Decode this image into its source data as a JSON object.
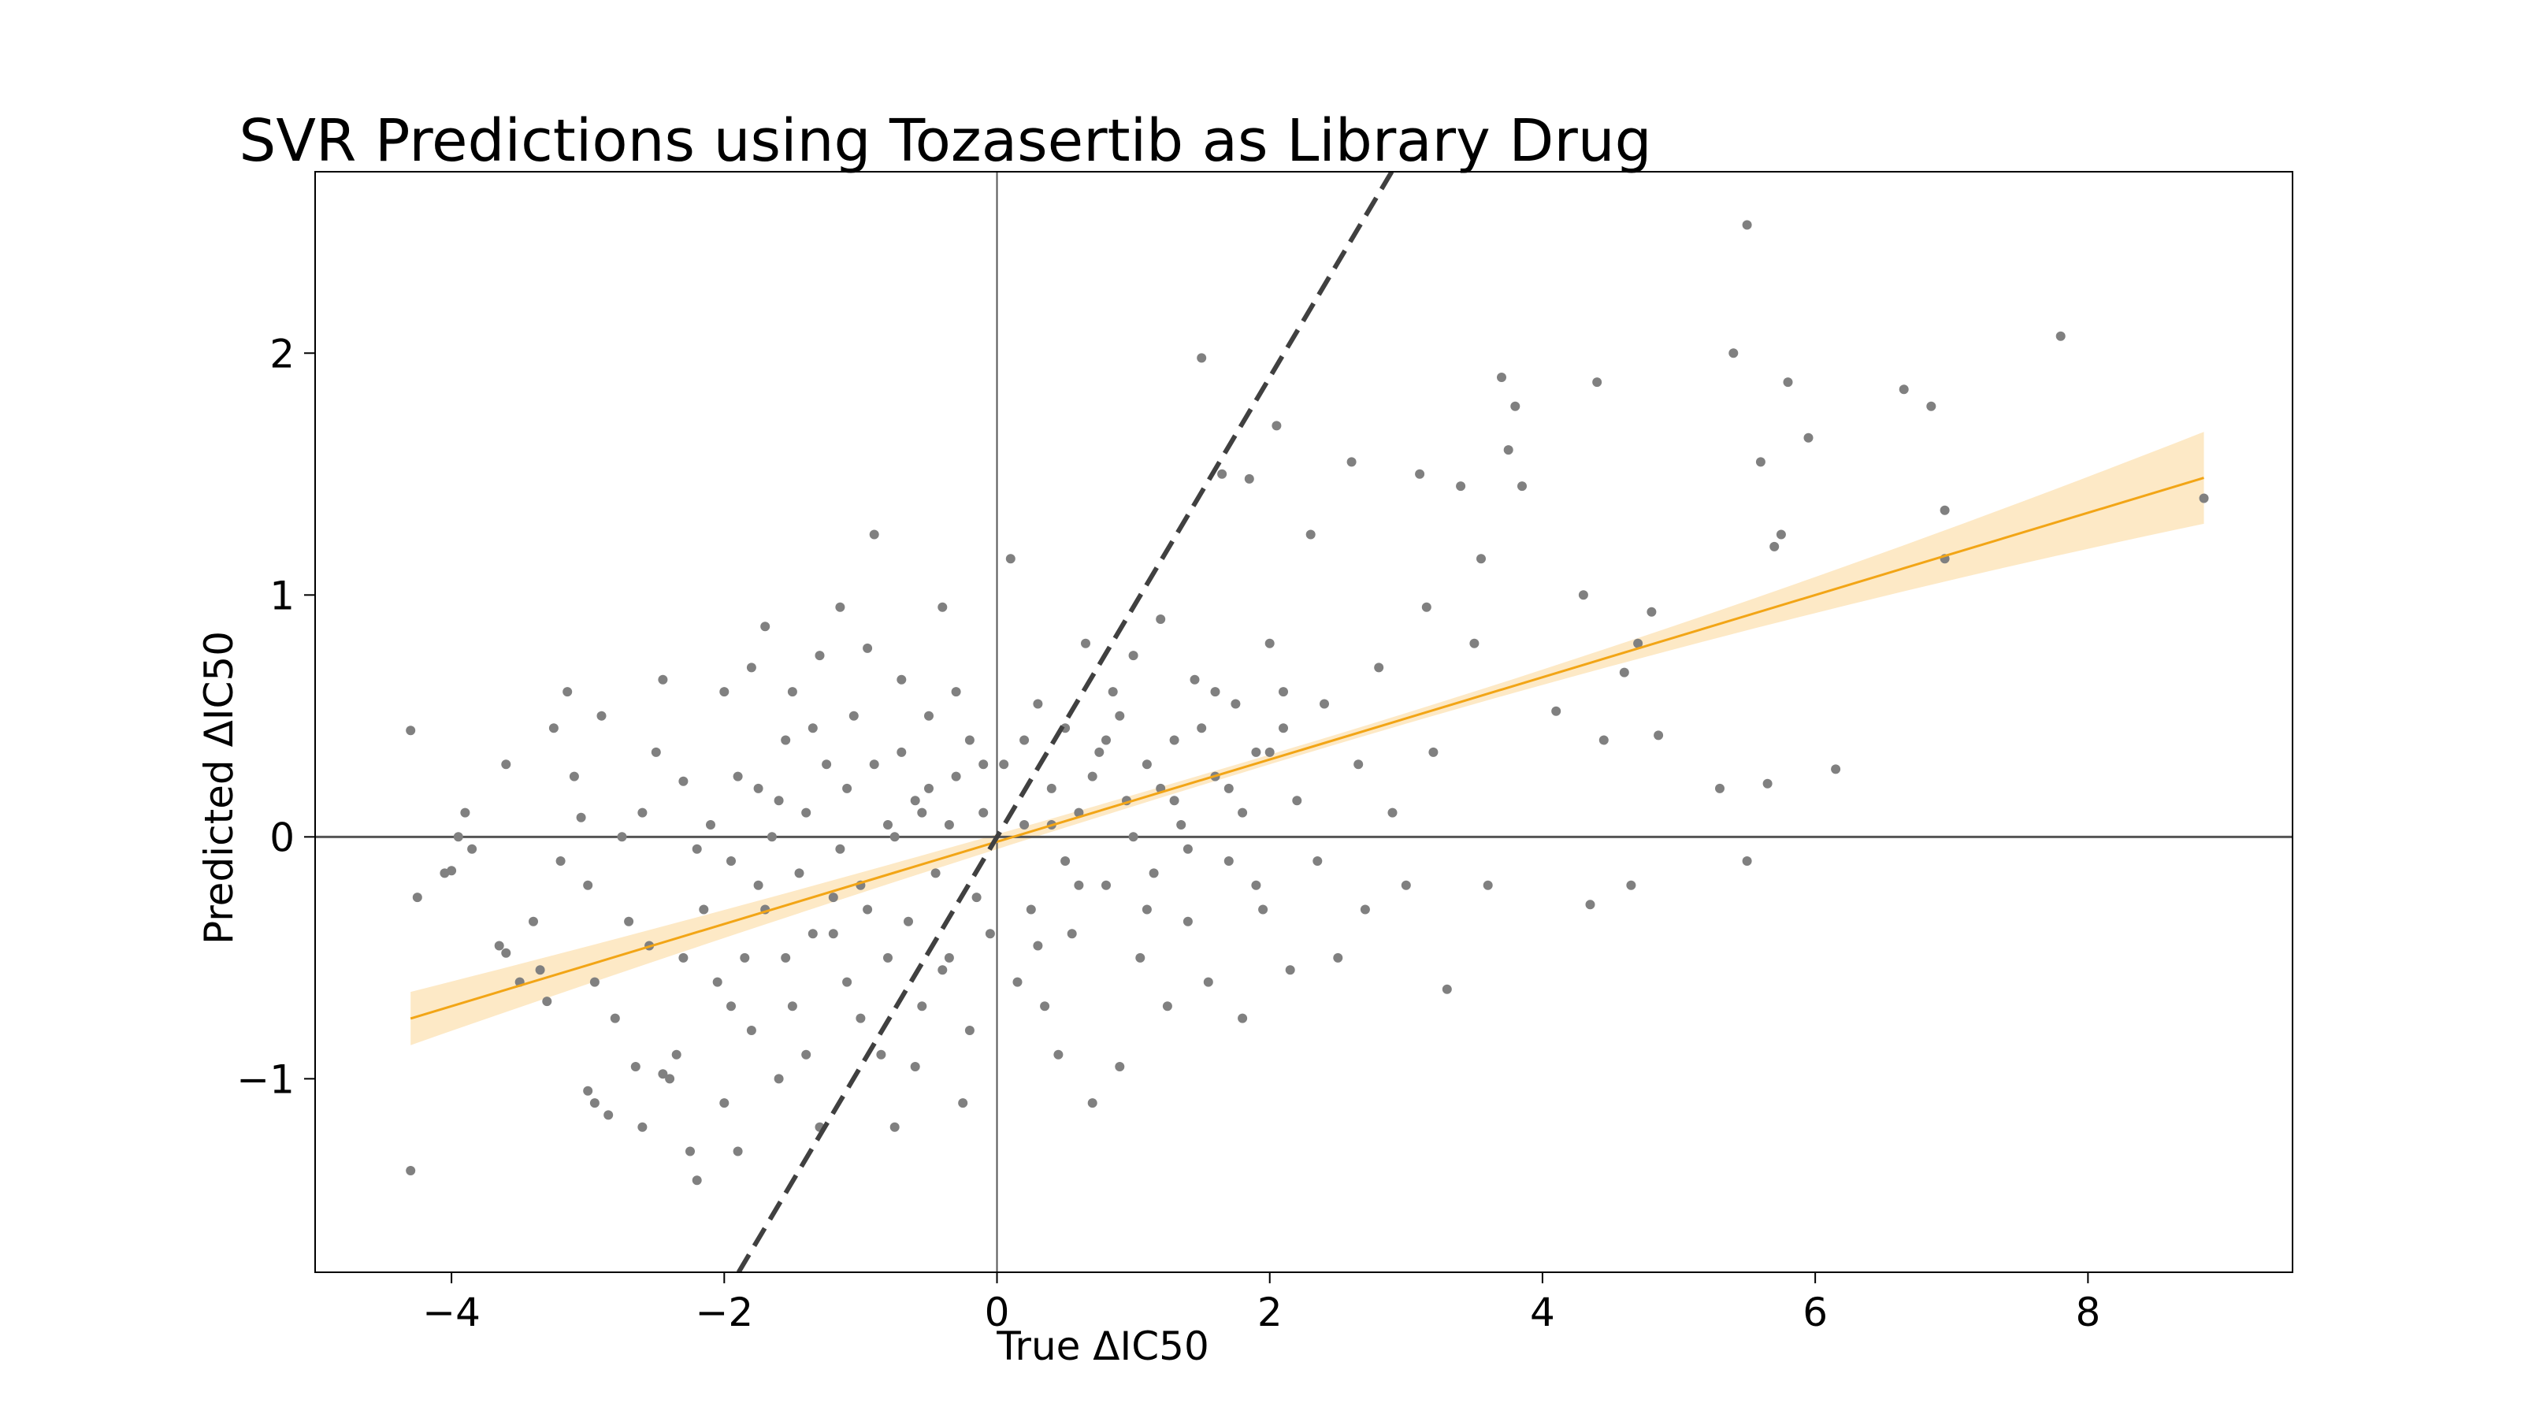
{
  "chart_data": {
    "type": "scatter",
    "title": "SVR Predictions using Tozasertib as Library Drug",
    "xlabel": "True ΔIC50",
    "ylabel": "Predicted ΔIC50",
    "xlim": [
      -5.0,
      9.5
    ],
    "ylim": [
      -1.8,
      2.75
    ],
    "xticks": [
      {
        "value": -4,
        "label": "−4"
      },
      {
        "value": -2,
        "label": "−2"
      },
      {
        "value": 0,
        "label": "0"
      },
      {
        "value": 2,
        "label": "2"
      },
      {
        "value": 4,
        "label": "4"
      },
      {
        "value": 6,
        "label": "6"
      },
      {
        "value": 8,
        "label": "8"
      }
    ],
    "yticks": [
      {
        "value": -1,
        "label": "−1"
      },
      {
        "value": 0,
        "label": "0"
      },
      {
        "value": 1,
        "label": "1"
      },
      {
        "value": 2,
        "label": "2"
      }
    ],
    "grid": false,
    "reference_lines": [
      {
        "kind": "vertical",
        "x": 0
      },
      {
        "kind": "horizontal",
        "y": 0
      },
      {
        "kind": "dashed",
        "slope": 0.95,
        "intercept": 0
      }
    ],
    "regression": {
      "x_range": [
        -4.3,
        8.85
      ],
      "slope": 0.17,
      "intercept": -0.02,
      "ci_halfwidth_at_ends": [
        0.11,
        0.19
      ],
      "ci_halfwidth_at_center": 0.02
    },
    "colors": {
      "points": "#808080",
      "regression_line": "#f2a516",
      "confidence_band": "#fde9c6",
      "dashed_line": "#404040",
      "zero_lines": "#555555"
    },
    "points": [
      [
        -4.3,
        0.44
      ],
      [
        -4.3,
        -1.38
      ],
      [
        -4.25,
        -0.25
      ],
      [
        -4.05,
        -0.15
      ],
      [
        -4.0,
        -0.14
      ],
      [
        -3.95,
        0.0
      ],
      [
        -3.9,
        0.1
      ],
      [
        -3.85,
        -0.05
      ],
      [
        -3.6,
        0.3
      ],
      [
        -3.65,
        -0.45
      ],
      [
        -3.6,
        -0.48
      ],
      [
        -3.5,
        -0.6
      ],
      [
        -3.35,
        -0.55
      ],
      [
        -3.3,
        -0.68
      ],
      [
        -3.25,
        0.45
      ],
      [
        -3.15,
        0.6
      ],
      [
        -3.1,
        0.25
      ],
      [
        -3.05,
        0.08
      ],
      [
        -3.0,
        -0.2
      ],
      [
        -3.0,
        -1.05
      ],
      [
        -2.95,
        -1.1
      ],
      [
        -2.95,
        -0.6
      ],
      [
        -2.85,
        -1.15
      ],
      [
        -2.8,
        -0.75
      ],
      [
        -2.7,
        -0.35
      ],
      [
        -2.65,
        -0.95
      ],
      [
        -2.6,
        -1.2
      ],
      [
        -2.55,
        -0.45
      ],
      [
        -2.45,
        -0.98
      ],
      [
        -2.4,
        -1.0
      ],
      [
        -2.35,
        -0.9
      ],
      [
        -2.3,
        0.23
      ],
      [
        -2.25,
        -1.3
      ],
      [
        -2.2,
        -1.42
      ],
      [
        -2.15,
        -0.3
      ],
      [
        -2.1,
        0.05
      ],
      [
        -2.05,
        -0.6
      ],
      [
        -2.0,
        -1.1
      ],
      [
        -1.95,
        -0.1
      ],
      [
        -1.9,
        0.25
      ],
      [
        -1.85,
        -0.5
      ],
      [
        -1.8,
        -0.8
      ],
      [
        -1.75,
        0.2
      ],
      [
        -1.7,
        0.87
      ],
      [
        -1.7,
        -0.3
      ],
      [
        -1.65,
        0.0
      ],
      [
        -1.6,
        -1.0
      ],
      [
        -1.55,
        0.4
      ],
      [
        -1.5,
        -0.7
      ],
      [
        -1.45,
        -0.15
      ],
      [
        -1.4,
        0.1
      ],
      [
        -1.35,
        0.45
      ],
      [
        -1.3,
        -1.2
      ],
      [
        -1.25,
        0.3
      ],
      [
        -1.2,
        -0.4
      ],
      [
        -1.15,
        0.95
      ],
      [
        -1.1,
        -0.6
      ],
      [
        -1.05,
        0.5
      ],
      [
        -1.0,
        -0.2
      ],
      [
        -0.95,
        0.78
      ],
      [
        -0.9,
        1.25
      ],
      [
        -0.85,
        -0.9
      ],
      [
        -0.8,
        0.05
      ],
      [
        -0.75,
        -1.2
      ],
      [
        -0.7,
        0.35
      ],
      [
        -0.65,
        -0.35
      ],
      [
        -0.6,
        0.15
      ],
      [
        -0.55,
        -0.7
      ],
      [
        -0.5,
        0.5
      ],
      [
        -0.45,
        -0.15
      ],
      [
        -0.4,
        0.95
      ],
      [
        -0.35,
        -0.5
      ],
      [
        -0.3,
        0.25
      ],
      [
        -0.25,
        -1.1
      ],
      [
        -0.2,
        0.4
      ],
      [
        -0.15,
        -0.25
      ],
      [
        -0.1,
        0.1
      ],
      [
        -0.05,
        -0.4
      ],
      [
        -3.4,
        -0.35
      ],
      [
        -3.2,
        -0.1
      ],
      [
        -2.9,
        0.5
      ],
      [
        -2.75,
        0.0
      ],
      [
        -2.5,
        0.35
      ],
      [
        -2.45,
        0.65
      ],
      [
        -2.2,
        -0.05
      ],
      [
        -2.0,
        0.6
      ],
      [
        -1.9,
        -1.3
      ],
      [
        -1.8,
        0.7
      ],
      [
        -1.6,
        0.15
      ],
      [
        -1.5,
        0.6
      ],
      [
        -1.4,
        -0.9
      ],
      [
        -1.3,
        0.75
      ],
      [
        -1.2,
        -0.25
      ],
      [
        -1.1,
        0.2
      ],
      [
        -1.0,
        -0.75
      ],
      [
        -0.9,
        0.3
      ],
      [
        -0.8,
        -0.5
      ],
      [
        -0.7,
        0.65
      ],
      [
        -0.6,
        -0.95
      ],
      [
        -0.5,
        0.2
      ],
      [
        -0.4,
        -0.55
      ],
      [
        -0.3,
        0.6
      ],
      [
        -0.2,
        -0.8
      ],
      [
        -0.1,
        0.3
      ],
      [
        -2.6,
        0.1
      ],
      [
        -2.3,
        -0.5
      ],
      [
        -1.95,
        -0.7
      ],
      [
        -1.75,
        -0.2
      ],
      [
        -1.55,
        -0.5
      ],
      [
        -1.35,
        -0.4
      ],
      [
        -1.15,
        -0.05
      ],
      [
        -0.95,
        -0.3
      ],
      [
        -0.75,
        0.0
      ],
      [
        -0.55,
        0.1
      ],
      [
        -0.35,
        0.05
      ],
      [
        0.05,
        0.3
      ],
      [
        0.1,
        1.15
      ],
      [
        0.15,
        -0.6
      ],
      [
        0.2,
        0.05
      ],
      [
        0.25,
        -0.3
      ],
      [
        0.3,
        0.55
      ],
      [
        0.35,
        -0.7
      ],
      [
        0.4,
        0.2
      ],
      [
        0.45,
        -0.9
      ],
      [
        0.5,
        0.45
      ],
      [
        0.55,
        -0.4
      ],
      [
        0.6,
        0.1
      ],
      [
        0.65,
        0.8
      ],
      [
        0.7,
        -1.1
      ],
      [
        0.75,
        0.35
      ],
      [
        0.8,
        -0.2
      ],
      [
        0.85,
        0.6
      ],
      [
        0.9,
        -0.95
      ],
      [
        0.95,
        0.15
      ],
      [
        1.0,
        0.75
      ],
      [
        1.05,
        -0.5
      ],
      [
        1.1,
        0.3
      ],
      [
        1.15,
        -0.15
      ],
      [
        1.2,
        0.9
      ],
      [
        1.25,
        -0.7
      ],
      [
        1.3,
        0.4
      ],
      [
        1.35,
        0.05
      ],
      [
        1.4,
        -0.35
      ],
      [
        1.45,
        0.65
      ],
      [
        1.5,
        1.98
      ],
      [
        1.55,
        -0.6
      ],
      [
        1.6,
        0.25
      ],
      [
        1.65,
        1.5
      ],
      [
        1.7,
        -0.1
      ],
      [
        1.75,
        0.55
      ],
      [
        1.8,
        -0.75
      ],
      [
        1.85,
        1.48
      ],
      [
        1.9,
        0.35
      ],
      [
        1.95,
        -0.3
      ],
      [
        2.0,
        0.8
      ],
      [
        2.05,
        1.7
      ],
      [
        2.1,
        0.45
      ],
      [
        2.15,
        -0.55
      ],
      [
        2.2,
        0.15
      ],
      [
        2.3,
        1.25
      ],
      [
        2.35,
        -0.1
      ],
      [
        2.4,
        0.55
      ],
      [
        2.5,
        -0.5
      ],
      [
        2.6,
        1.55
      ],
      [
        2.65,
        0.3
      ],
      [
        2.7,
        -0.3
      ],
      [
        2.8,
        0.7
      ],
      [
        2.9,
        0.1
      ],
      [
        3.0,
        -0.2
      ],
      [
        3.1,
        1.5
      ],
      [
        3.15,
        0.95
      ],
      [
        3.2,
        0.35
      ],
      [
        3.3,
        -0.63
      ],
      [
        3.4,
        1.45
      ],
      [
        3.5,
        0.8
      ],
      [
        3.55,
        1.15
      ],
      [
        3.6,
        -0.2
      ],
      [
        3.7,
        1.9
      ],
      [
        3.75,
        1.6
      ],
      [
        3.8,
        1.78
      ],
      [
        3.85,
        1.45
      ],
      [
        4.1,
        0.52
      ],
      [
        4.3,
        1.0
      ],
      [
        4.35,
        -0.28
      ],
      [
        4.4,
        1.88
      ],
      [
        4.45,
        0.4
      ],
      [
        4.6,
        0.68
      ],
      [
        4.65,
        -0.2
      ],
      [
        4.7,
        0.8
      ],
      [
        4.8,
        0.93
      ],
      [
        4.85,
        0.42
      ],
      [
        5.3,
        0.2
      ],
      [
        5.4,
        2.0
      ],
      [
        5.5,
        -0.1
      ],
      [
        5.5,
        2.53
      ],
      [
        5.6,
        1.55
      ],
      [
        5.65,
        0.22
      ],
      [
        5.7,
        1.2
      ],
      [
        5.75,
        1.25
      ],
      [
        5.8,
        1.88
      ],
      [
        5.95,
        1.65
      ],
      [
        6.15,
        0.28
      ],
      [
        6.65,
        1.85
      ],
      [
        6.85,
        1.78
      ],
      [
        6.95,
        1.35
      ],
      [
        6.95,
        1.15
      ],
      [
        7.8,
        2.07
      ],
      [
        8.85,
        1.4
      ],
      [
        0.3,
        -0.45
      ],
      [
        0.5,
        -0.1
      ],
      [
        0.7,
        0.25
      ],
      [
        0.9,
        0.5
      ],
      [
        1.1,
        -0.3
      ],
      [
        1.3,
        0.15
      ],
      [
        1.5,
        0.45
      ],
      [
        1.7,
        0.2
      ],
      [
        1.9,
        -0.2
      ],
      [
        2.1,
        0.6
      ],
      [
        0.2,
        0.4
      ],
      [
        0.4,
        0.05
      ],
      [
        0.6,
        -0.2
      ],
      [
        0.8,
        0.4
      ],
      [
        1.0,
        0.0
      ],
      [
        1.2,
        0.2
      ],
      [
        1.4,
        -0.05
      ],
      [
        1.6,
        0.6
      ],
      [
        1.8,
        0.1
      ],
      [
        2.0,
        0.35
      ]
    ]
  }
}
